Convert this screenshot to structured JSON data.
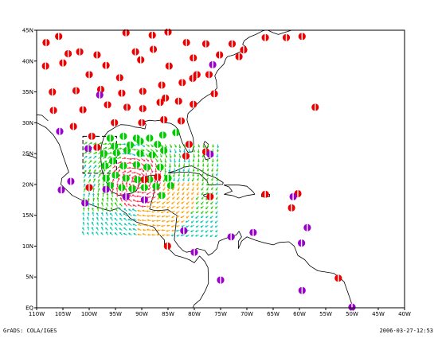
{
  "map": {
    "lon_range": [
      -110,
      -40
    ],
    "lat_range": [
      0,
      45
    ],
    "x_ticks": [
      {
        "lon": -110,
        "label": "110W"
      },
      {
        "lon": -105,
        "label": "105W"
      },
      {
        "lon": -100,
        "label": "100W"
      },
      {
        "lon": -95,
        "label": "95W"
      },
      {
        "lon": -90,
        "label": "90W"
      },
      {
        "lon": -85,
        "label": "85W"
      },
      {
        "lon": -80,
        "label": "80W"
      },
      {
        "lon": -75,
        "label": "75W"
      },
      {
        "lon": -70,
        "label": "70W"
      },
      {
        "lon": -65,
        "label": "65W"
      },
      {
        "lon": -60,
        "label": "60W"
      },
      {
        "lon": -55,
        "label": "55W"
      },
      {
        "lon": -50,
        "label": "50W"
      },
      {
        "lon": -45,
        "label": "45W"
      },
      {
        "lon": -40,
        "label": "40W"
      }
    ],
    "y_ticks": [
      {
        "lat": 0,
        "label": "EQ"
      },
      {
        "lat": 5,
        "label": "5N"
      },
      {
        "lat": 10,
        "label": "10N"
      },
      {
        "lat": 15,
        "label": "15N"
      },
      {
        "lat": 20,
        "label": "20N"
      },
      {
        "lat": 25,
        "label": "25N"
      },
      {
        "lat": 30,
        "label": "30N"
      },
      {
        "lat": 35,
        "label": "35N"
      },
      {
        "lat": 40,
        "label": "40N"
      },
      {
        "lat": 45,
        "label": "45N"
      }
    ],
    "colors": {
      "coast": "#000000",
      "station_red": "#ee0000",
      "station_purple": "#9a00cc",
      "station_green": "#00cc00",
      "vector_red": "#ff3050",
      "vector_orange": "#ffa000",
      "vector_green": "#20d000",
      "vector_cyan": "#00c8b0",
      "box": "#000000"
    },
    "stations_red": [
      [
        -108.2,
        43.0
      ],
      [
        -105.8,
        44.0
      ],
      [
        -104,
        41.2
      ],
      [
        -101.8,
        41.5
      ],
      [
        -98.5,
        41.0
      ],
      [
        -93.0,
        44.6
      ],
      [
        -88.0,
        44.2
      ],
      [
        -85.0,
        44.7
      ],
      [
        -108.3,
        39.2
      ],
      [
        -105.0,
        39.7
      ],
      [
        -100.0,
        37.8
      ],
      [
        -96.8,
        39.3
      ],
      [
        -94.2,
        37.3
      ],
      [
        -90.2,
        40.2
      ],
      [
        -91.2,
        41.5
      ],
      [
        -87.8,
        41.9
      ],
      [
        -84.8,
        39.2
      ],
      [
        -80.2,
        40.5
      ],
      [
        -77.8,
        42.8
      ],
      [
        -75.2,
        41.0
      ],
      [
        -72.8,
        42.8
      ],
      [
        -71.5,
        40.7
      ],
      [
        -70.6,
        41.8
      ],
      [
        -66.5,
        43.8
      ],
      [
        -62.5,
        43.8
      ],
      [
        -59.5,
        44.0
      ],
      [
        -81.5,
        43.0
      ],
      [
        -79.5,
        37.8
      ],
      [
        -77.2,
        37.8
      ],
      [
        -80.3,
        37.2
      ],
      [
        -86.2,
        36.1
      ],
      [
        -82.3,
        36.5
      ],
      [
        -107.0,
        35.0
      ],
      [
        -102.5,
        35.2
      ],
      [
        -97.8,
        35.4
      ],
      [
        -93.8,
        34.8
      ],
      [
        -89.8,
        35.1
      ],
      [
        -85.5,
        34.0
      ],
      [
        -76.2,
        34.7
      ],
      [
        -80.2,
        33.0
      ],
      [
        -83.0,
        33.5
      ],
      [
        -86.5,
        33.3
      ],
      [
        -89.8,
        32.3
      ],
      [
        -92.8,
        32.5
      ],
      [
        -96.5,
        32.9
      ],
      [
        -101.2,
        32.1
      ],
      [
        -106.8,
        32.0
      ],
      [
        -103.0,
        29.4
      ],
      [
        -95.2,
        30.0
      ],
      [
        -90.0,
        30.0
      ],
      [
        -85.8,
        30.5
      ],
      [
        -82.5,
        30.3
      ],
      [
        -99.5,
        27.8
      ],
      [
        -98.5,
        26.0
      ],
      [
        -81.0,
        26.5
      ],
      [
        -81.6,
        24.6
      ],
      [
        -77.8,
        25.3
      ],
      [
        -89.5,
        20.8
      ],
      [
        -87.0,
        21.2
      ],
      [
        -100.0,
        19.5
      ],
      [
        -85.1,
        10.0
      ],
      [
        -77.0,
        18.0
      ],
      [
        -66.5,
        18.4
      ],
      [
        -61.5,
        16.2
      ],
      [
        -57.0,
        32.5
      ],
      [
        -52.6,
        4.8
      ],
      [
        -60.3,
        18.5
      ]
    ],
    "stations_purple": [
      [
        -105.6,
        28.6
      ],
      [
        -105.3,
        19.1
      ],
      [
        -103.5,
        20.5
      ],
      [
        -100.8,
        17.0
      ],
      [
        -100.2,
        25.8
      ],
      [
        -96.8,
        19.2
      ],
      [
        -93.0,
        18.0
      ],
      [
        -89.5,
        17.5
      ],
      [
        -82.0,
        12.5
      ],
      [
        -80.0,
        9.0
      ],
      [
        -76.5,
        39.4
      ],
      [
        -98.0,
        34.5
      ],
      [
        -73.0,
        11.5
      ],
      [
        -68.8,
        12.2
      ],
      [
        -61.2,
        18.0
      ],
      [
        -58.5,
        13.0
      ],
      [
        -59.6,
        10.5
      ],
      [
        -59.5,
        2.8
      ],
      [
        -50.0,
        0.1
      ],
      [
        -75.0,
        4.5
      ],
      [
        -77.0,
        24.9
      ]
    ],
    "stations_green": [
      [
        -96.0,
        27.5
      ],
      [
        -93.5,
        27.8
      ],
      [
        -91.0,
        27.5
      ],
      [
        -88.5,
        27.5
      ],
      [
        -86.0,
        28.0
      ],
      [
        -83.5,
        28.4
      ],
      [
        -95.2,
        26.2
      ],
      [
        -92.8,
        25.5
      ],
      [
        -90.3,
        25.0
      ],
      [
        -88.0,
        24.8
      ],
      [
        -85.8,
        25.5
      ],
      [
        -95.5,
        23.8
      ],
      [
        -93.5,
        23.0
      ],
      [
        -91.0,
        23.2
      ],
      [
        -89.0,
        22.8
      ],
      [
        -86.5,
        22.8
      ],
      [
        -95.0,
        21.5
      ],
      [
        -93.0,
        21.0
      ],
      [
        -90.8,
        20.8
      ],
      [
        -88.5,
        20.8
      ],
      [
        -96.0,
        19.8
      ],
      [
        -93.8,
        19.5
      ],
      [
        -91.8,
        19.3
      ],
      [
        -89.5,
        19.5
      ],
      [
        -87.3,
        19.7
      ],
      [
        -86.2,
        18.2
      ],
      [
        -84.5,
        19.8
      ],
      [
        -85.0,
        21.0
      ],
      [
        -87.0,
        26.5
      ],
      [
        -90.3,
        27.0
      ],
      [
        -92.2,
        26.4
      ],
      [
        -94.8,
        25.1
      ],
      [
        -97.2,
        25.0
      ],
      [
        -97.0,
        23.0
      ],
      [
        -96.8,
        21.0
      ]
    ],
    "vector_region": {
      "lon": [
        -101,
        -75
      ],
      "lat": [
        11.5,
        26.5
      ],
      "center": [
        -91.0,
        20.5
      ]
    },
    "dashed_box": {
      "lon": [
        -101.2,
        -94.8
      ],
      "lat": [
        21.8,
        27.8
      ]
    },
    "coastlines": [
      [
        [
          -110,
          30
        ],
        [
          -108.2,
          29.2
        ],
        [
          -106.8,
          28
        ],
        [
          -105.7,
          26.5
        ],
        [
          -104.8,
          24.2
        ],
        [
          -103.9,
          22.0
        ],
        [
          -105.2,
          21.0
        ],
        [
          -105.4,
          20.0
        ],
        [
          -104.3,
          19.1
        ],
        [
          -103.2,
          18.2
        ],
        [
          -101.5,
          17.5
        ],
        [
          -99.9,
          16.8
        ],
        [
          -98.0,
          16.2
        ],
        [
          -96.0,
          15.7
        ],
        [
          -94.5,
          16.2
        ],
        [
          -93.0,
          15.3
        ],
        [
          -92.2,
          14.5
        ],
        [
          -91.0,
          13.9
        ],
        [
          -89.5,
          13.5
        ],
        [
          -88.0,
          13.2
        ],
        [
          -87.5,
          12.9
        ],
        [
          -86.8,
          12.0
        ],
        [
          -85.7,
          11.0
        ],
        [
          -85.7,
          10.0
        ],
        [
          -84.8,
          9.5
        ],
        [
          -83.6,
          8.5
        ],
        [
          -82.3,
          8.2
        ],
        [
          -81.0,
          7.8
        ],
        [
          -80.0,
          7.3
        ],
        [
          -79.0,
          8.4
        ],
        [
          -78.0,
          7.5
        ],
        [
          -77.4,
          6.5
        ],
        [
          -77.3,
          4.0
        ],
        [
          -77.9,
          2.8
        ],
        [
          -78.9,
          1.3
        ],
        [
          -80.0,
          0.5
        ],
        [
          -80.3,
          0
        ]
      ],
      [
        [
          -110,
          23.7
        ],
        [
          -110.0,
          24.2
        ],
        [
          -110.7,
          24.5
        ],
        [
          -112.1,
          24.8
        ]
      ],
      [
        [
          -110,
          31.3
        ],
        [
          -109.0,
          31.2
        ],
        [
          -107.8,
          30.3
        ]
      ],
      [
        [
          -97.2,
          27.7
        ],
        [
          -97.7,
          26.2
        ],
        [
          -97.8,
          24.5
        ],
        [
          -97.6,
          22.5
        ],
        [
          -97.3,
          21.5
        ],
        [
          -96.8,
          20.5
        ],
        [
          -96.3,
          19.6
        ],
        [
          -95.8,
          18.8
        ],
        [
          -94.9,
          18.5
        ],
        [
          -94.4,
          18.2
        ],
        [
          -93.0,
          18.4
        ],
        [
          -91.8,
          18.6
        ],
        [
          -91.0,
          19.0
        ],
        [
          -90.6,
          19.8
        ],
        [
          -90.3,
          21.0
        ],
        [
          -89.3,
          21.3
        ],
        [
          -88.0,
          21.5
        ],
        [
          -87.0,
          21.5
        ],
        [
          -86.8,
          20.8
        ],
        [
          -87.4,
          19.8
        ],
        [
          -87.7,
          18.5
        ],
        [
          -88.2,
          17.0
        ],
        [
          -88.5,
          16.0
        ],
        [
          -87.6,
          15.8
        ],
        [
          -86.4,
          15.8
        ],
        [
          -85.0,
          15.9
        ],
        [
          -84.0,
          15.3
        ],
        [
          -83.3,
          15.0
        ],
        [
          -83.5,
          13.5
        ],
        [
          -83.7,
          12.0
        ],
        [
          -83.8,
          11.0
        ],
        [
          -83.0,
          10.0
        ],
        [
          -82.2,
          9.3
        ],
        [
          -81.5,
          9.0
        ],
        [
          -80.3,
          9.2
        ],
        [
          -79.5,
          9.6
        ],
        [
          -78.0,
          9.3
        ],
        [
          -77.3,
          8.5
        ],
        [
          -76.5,
          8.9
        ],
        [
          -75.7,
          9.6
        ],
        [
          -75.3,
          10.8
        ],
        [
          -74.2,
          11.2
        ],
        [
          -73.2,
          11.5
        ],
        [
          -72.0,
          11.8
        ],
        [
          -71.5,
          12.4
        ],
        [
          -71.0,
          11.5
        ],
        [
          -71.6,
          10.8
        ],
        [
          -71.6,
          9.6
        ],
        [
          -71.0,
          10.8
        ],
        [
          -70.0,
          11.5
        ],
        [
          -68.5,
          11.0
        ],
        [
          -67.0,
          10.6
        ],
        [
          -65.0,
          10.2
        ],
        [
          -63.8,
          10.6
        ],
        [
          -62.0,
          10.7
        ],
        [
          -61.0,
          10.0
        ],
        [
          -60.3,
          8.5
        ],
        [
          -59.0,
          7.8
        ],
        [
          -58.0,
          6.8
        ],
        [
          -56.5,
          6.0
        ],
        [
          -55.0,
          5.8
        ],
        [
          -53.5,
          5.6
        ],
        [
          -52.5,
          5.0
        ],
        [
          -51.5,
          4.2
        ],
        [
          -51.0,
          3.0
        ],
        [
          -50.5,
          1.8
        ],
        [
          -50.0,
          0.5
        ],
        [
          -49.6,
          0.0
        ]
      ],
      [
        [
          -97.2,
          27.7
        ],
        [
          -96.5,
          28.5
        ],
        [
          -95.0,
          29.3
        ],
        [
          -94.0,
          29.7
        ],
        [
          -92.5,
          29.6
        ],
        [
          -91.3,
          29.3
        ],
        [
          -90.3,
          29.2
        ],
        [
          -89.4,
          29.0
        ],
        [
          -89.2,
          29.7
        ],
        [
          -89.5,
          30.2
        ],
        [
          -88.5,
          30.4
        ],
        [
          -87.5,
          30.3
        ],
        [
          -86.5,
          30.4
        ],
        [
          -85.5,
          30.0
        ],
        [
          -84.5,
          29.9
        ],
        [
          -83.7,
          29.5
        ],
        [
          -83.0,
          28.8
        ],
        [
          -82.7,
          27.8
        ],
        [
          -82.3,
          26.8
        ],
        [
          -81.8,
          26.0
        ],
        [
          -81.2,
          25.2
        ],
        [
          -80.4,
          25.3
        ],
        [
          -80.1,
          26.2
        ],
        [
          -80.2,
          27.5
        ],
        [
          -80.6,
          28.5
        ],
        [
          -81.1,
          29.6
        ],
        [
          -81.4,
          30.5
        ],
        [
          -81.2,
          31.5
        ],
        [
          -80.3,
          32.2
        ],
        [
          -79.4,
          33.1
        ],
        [
          -78.4,
          33.9
        ],
        [
          -77.5,
          34.4
        ],
        [
          -76.5,
          34.9
        ],
        [
          -75.7,
          35.6
        ],
        [
          -75.8,
          36.8
        ],
        [
          -76.1,
          37.6
        ],
        [
          -75.6,
          38.4
        ],
        [
          -75.2,
          38.8
        ],
        [
          -74.4,
          39.5
        ],
        [
          -74.0,
          40.4
        ],
        [
          -73.7,
          40.7
        ],
        [
          -72.5,
          41.0
        ],
        [
          -71.5,
          41.4
        ],
        [
          -70.7,
          41.7
        ],
        [
          -70.0,
          41.8
        ],
        [
          -70.2,
          42.3
        ],
        [
          -70.8,
          42.7
        ],
        [
          -70.5,
          43.3
        ],
        [
          -69.5,
          43.9
        ],
        [
          -68.3,
          44.3
        ],
        [
          -67.0,
          44.9
        ],
        [
          -66.5,
          45
        ]
      ],
      [
        [
          -66.0,
          45
        ],
        [
          -65.0,
          44.6
        ],
        [
          -64.0,
          44.3
        ],
        [
          -63.0,
          44.6
        ],
        [
          -61.5,
          45
        ],
        [
          -60.5,
          45
        ]
      ],
      [
        [
          -85.0,
          21.9
        ],
        [
          -83.5,
          22.2
        ],
        [
          -82.0,
          22.8
        ],
        [
          -80.5,
          23.0
        ],
        [
          -79.0,
          22.4
        ],
        [
          -77.8,
          21.7
        ],
        [
          -76.0,
          21.1
        ],
        [
          -74.5,
          20.3
        ],
        [
          -74.6,
          20.0
        ],
        [
          -77.3,
          19.9
        ],
        [
          -77.6,
          20.6
        ],
        [
          -79.0,
          21.7
        ],
        [
          -81.0,
          22.0
        ],
        [
          -82.5,
          22.0
        ],
        [
          -84.0,
          21.9
        ],
        [
          -85.0,
          21.9
        ]
      ],
      [
        [
          -74.4,
          19.9
        ],
        [
          -72.8,
          19.9
        ],
        [
          -71.5,
          19.9
        ],
        [
          -70.0,
          19.7
        ],
        [
          -68.8,
          18.8
        ],
        [
          -68.5,
          18.4
        ],
        [
          -70.0,
          18.2
        ],
        [
          -71.5,
          17.8
        ],
        [
          -72.8,
          18.2
        ],
        [
          -74.3,
          18.4
        ],
        [
          -72.8,
          18.9
        ],
        [
          -73.4,
          19.6
        ],
        [
          -74.4,
          19.9
        ]
      ],
      [
        [
          -78.3,
          18.3
        ],
        [
          -77.3,
          18.5
        ],
        [
          -76.4,
          18.2
        ],
        [
          -76.8,
          17.8
        ],
        [
          -78.0,
          18.0
        ],
        [
          -78.3,
          18.3
        ]
      ],
      [
        [
          -67.2,
          18.5
        ],
        [
          -65.7,
          18.4
        ],
        [
          -65.7,
          18.0
        ],
        [
          -67.2,
          18.0
        ],
        [
          -67.2,
          18.5
        ]
      ],
      [
        [
          -78.0,
          27.0
        ],
        [
          -77.3,
          26.5
        ],
        [
          -77.6,
          25.8
        ],
        [
          -78.2,
          26.6
        ],
        [
          -78.0,
          27.0
        ]
      ],
      [
        [
          -77.6,
          25.2
        ],
        [
          -77.0,
          24.2
        ],
        [
          -77.8,
          24.0
        ],
        [
          -78.2,
          24.7
        ],
        [
          -77.6,
          25.2
        ]
      ]
    ]
  },
  "footer": {
    "left": "GrADS: COLA/IGES",
    "right": "2006-03-27-12:53"
  }
}
